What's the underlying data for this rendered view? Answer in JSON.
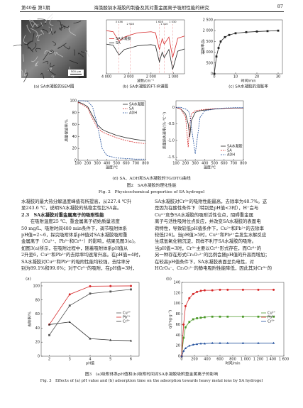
{
  "header": {
    "volume": "第40卷 第1期",
    "title": "海藻酸钠水凝胶的制备及其对重金属离子吸附性能的研究",
    "page": "87"
  },
  "figure2": {
    "panels": [
      {
        "caption": "(a) SA水凝胶的SEM图",
        "scale_bar": "500 μm"
      },
      {
        "caption": "(b) SA水凝胶的FT-IR谱图",
        "chart": {
          "type": "line",
          "xlabel": "波数/cm⁻¹",
          "legend": "left",
          "x": [
            4000,
            3700,
            3436,
            3200,
            2928,
            2600,
            2000,
            1800,
            1626,
            1500,
            1410,
            1200,
            1030,
            800,
            500
          ],
          "xlim": [
            4000,
            500
          ],
          "xticks": [
            {
              "value": 4000,
              "label": "4 000"
            },
            {
              "value": 3000,
              "label": "3 000"
            },
            {
              "value": 2000,
              "label": "2 000"
            },
            {
              "value": 1000,
              "label": "1 000"
            }
          ],
          "ylim": [
            0,
            100
          ],
          "yticks": [],
          "annotations": [
            {
              "text": "3 436",
              "x": 3436
            },
            {
              "text": "2 928",
              "x": 2928
            },
            {
              "text": "1 626",
              "x": 1626
            },
            {
              "text": "1 410",
              "x": 1410
            },
            {
              "text": "1 030",
              "x": 1030
            }
          ],
          "series": [
            {
              "name": "SA水凝胶",
              "color": "#d62728",
              "values": [
                80,
                78,
                60,
                68,
                72,
                76,
                78,
                76,
                45,
                65,
                55,
                68,
                30,
                66,
                70
              ]
            },
            {
              "name": "SA",
              "color": "#222222",
              "values": [
                55,
                53,
                35,
                45,
                48,
                52,
                54,
                52,
                22,
                40,
                30,
                45,
                8,
                42,
                46
              ]
            }
          ]
        }
      },
      {
        "caption": "(c) SA水凝胶的溶胀率",
        "chart": {
          "type": "line",
          "xlabel": "时间/min",
          "ylabel": "溶胀率/%",
          "x": [
            0,
            1,
            2,
            3,
            5,
            7,
            10,
            15,
            20,
            25,
            30
          ],
          "xlim": [
            0,
            32
          ],
          "xticks": [
            0,
            10,
            20,
            30
          ],
          "ylim": [
            0,
            2500
          ],
          "yticks": [
            0,
            500,
            {
              "value": 1000,
              "label": "1 000"
            },
            {
              "value": 1500,
              "label": "1 500"
            },
            {
              "value": 2000,
              "label": "2 000"
            },
            {
              "value": 2500,
              "label": "2 500"
            }
          ],
          "series": [
            {
              "color": "#222222",
              "marker": "square",
              "values": [
                0,
                800,
                1200,
                1500,
                1700,
                1800,
                1880,
                1930,
                1960,
                1980,
                2000
              ]
            }
          ]
        }
      },
      {
        "chart": {
          "type": "line",
          "xlabel": "温度/℃",
          "ylabel": "质量保留率/%",
          "legend": "upper-right",
          "x": [
            100,
            150,
            200,
            250,
            300,
            350,
            400,
            500,
            600,
            700,
            800
          ],
          "xlim": [
            100,
            800
          ],
          "xticks": [
            100,
            200,
            300,
            400,
            500,
            600,
            700,
            800
          ],
          "ylim": [
            0,
            100
          ],
          "yticks": [
            0,
            20,
            40,
            60,
            80,
            100
          ],
          "series": [
            {
              "name": "SA水凝胶",
              "color": "#222222",
              "values": [
                98,
                95,
                90,
                75,
                60,
                52,
                48,
                42,
                38,
                35,
                33
              ]
            },
            {
              "name": "SA",
              "color": "#d62728",
              "dash": true,
              "values": [
                97,
                93,
                88,
                70,
                55,
                48,
                44,
                38,
                33,
                30,
                28
              ]
            },
            {
              "name": "ADH",
              "color": "#1f4e9c",
              "dash": true,
              "values": [
                100,
                100,
                99,
                90,
                60,
                20,
                8,
                4,
                3,
                2,
                2
              ]
            }
          ]
        }
      },
      {
        "chart": {
          "type": "line",
          "xlabel": "温度/℃",
          "ylabel": "质量损失速率/(%·℃⁻¹)",
          "legend": "lower-right",
          "x": [
            100,
            150,
            200,
            227,
            243,
            260,
            300,
            350,
            400,
            500,
            600,
            700,
            800
          ],
          "xlim": [
            100,
            800
          ],
          "xticks": [
            100,
            200,
            300,
            400,
            500,
            600,
            700,
            800
          ],
          "ylim": [
            -1.6,
            0.2
          ],
          "yticks": [
            {
              "value": -1.5,
              "label": "-1.5"
            },
            {
              "value": -1.0,
              "label": "-1.0"
            },
            {
              "value": -0.5,
              "label": "-0.5"
            },
            0
          ],
          "series": [
            {
              "name": "SA水凝胶",
              "color": "#222222",
              "values": [
                0,
                -0.05,
                -0.2,
                -0.5,
                -0.9,
                -0.4,
                -0.15,
                -0.1,
                -0.08,
                -0.05,
                -0.03,
                -0.02,
                -0.02
              ]
            },
            {
              "name": "SA",
              "color": "#d62728",
              "dash": true,
              "values": [
                0,
                -0.05,
                -0.3,
                -1.2,
                -0.5,
                -0.2,
                -0.1,
                -0.08,
                -0.06,
                -0.04,
                -0.03,
                -0.02,
                -0.02
              ]
            },
            {
              "name": "ADH",
              "color": "#1f4e9c",
              "dash": true,
              "values": [
                0,
                0,
                -0.05,
                -0.1,
                -0.2,
                -0.6,
                -1.4,
                -0.3,
                -0.1,
                -0.05,
                -0.02,
                -0.01,
                -0.01
              ]
            }
          ]
        }
      }
    ],
    "row2_caption": "(d) SA、ADH和SA水凝胶的TG/DTG曲线",
    "caption_cn": "图2　SA水凝胶的理化性能",
    "caption_en": "Fig. 2　Physicochemical properties of SA hydrogel"
  },
  "body": {
    "left": [
      "水凝胶的最大热分解温度峰值有所提高，从227.4 ℃升",
      "至243.6 ℃，说明SA水凝胶的热稳定性比SA高。",
      "2.3　SA水凝胶对重金属离子的吸附性能",
      "　　在吸附温度25 ℃、重金属离子初始质量浓度",
      "50 mg/L、吸附时间480 min条件下，调节吸附体系",
      "pH值=2~6，探究吸附体系pH值对SA水凝胶吸附重",
      "金属离子（Cu²⁺、Pb²⁺和Cr³⁺）的影响，结果见图3(a)。",
      "如图3(a)所示，在吸附过程中，随着吸附体系pH值从",
      "2升至6，Cu²⁺和Pb²⁺的去除率均逐渐升高。在pH值=4时，",
      "SA水凝胶对Cu²⁺和Pb²⁺的吸附性能均较强，去除率分",
      "别为89.1%和99.6%；对于Cr³⁺的吸附，在pH值=3时，"
    ],
    "right": [
      "SA水凝胶对Cr³⁺的吸附性能最高，去除率为48.7%。这",
      "是因为在酸性条件下（特别是pH值<3时），H⁺会与",
      "Cu²⁺竞争SA水凝胶的吸附活性位点，阻碍重金属",
      "离子与活性吸附位点反应，并改变SA水凝胶的表面电",
      "荷特性，导致较低pH值条件下，Cu²⁺和Pb²⁺的去除率",
      "较低[26]。当pH值>5时，Cu²⁺和Pb²⁺会发生水解反应",
      "生成氢氧化物沉淀，同样不利于SA水凝胶的吸附。",
      "当pH值=3时，Cr³⁺主要以Cr³⁺形式存在，而Cr³⁺的",
      "另一种存在形式Cr₂O₇²⁻的比例会随pH值的升高而增加；",
      "在较高pH值条件下，SA水凝胶表面呈负电性，对",
      "HCrO₄⁻、Cr₂O₇²⁻的静电吸附性能降低，因此其对Cr³⁺的"
    ]
  },
  "figure3": {
    "panels": [
      {
        "caption": "(a)",
        "chart": {
          "type": "line",
          "xlabel": "pH值",
          "ylabel": "去除率/%",
          "legend": "right",
          "x": [
            2,
            3,
            4,
            5,
            6
          ],
          "xlim": [
            1.6,
            6.4
          ],
          "xticks": [
            2,
            3,
            4,
            5,
            6
          ],
          "ylim": [
            0,
            105
          ],
          "yticks": [
            0,
            20,
            40,
            60,
            80,
            100
          ],
          "series": [
            {
              "name": "Cu²⁺",
              "color": "#555555",
              "marker": "square",
              "values": [
                30,
                72,
                89.1,
                92,
                95
              ]
            },
            {
              "name": "Pb²⁺",
              "color": "#d62728",
              "marker": "circle",
              "values": [
                45,
                88,
                99.6,
                99.8,
                100
              ]
            },
            {
              "name": "Cr³⁺",
              "color": "#333333",
              "marker": "triangle",
              "values": [
                45,
                48.7,
                25,
                23,
                22
              ]
            }
          ]
        }
      },
      {
        "caption": "(b)",
        "chart": {
          "type": "line",
          "xlabel": "时间/min",
          "ylabel": "q/(mg·g⁻¹)",
          "legend": "right",
          "x": [
            0,
            30,
            60,
            120,
            180,
            240,
            300,
            360,
            480,
            600,
            720,
            960,
            1200,
            1440
          ],
          "xlim": [
            0,
            1600
          ],
          "xticks": [
            0,
            200,
            400,
            600,
            800,
            {
              "value": 1000,
              "label": "1 000"
            },
            {
              "value": 1200,
              "label": "1 200"
            },
            {
              "value": 1400,
              "label": "1 400"
            },
            {
              "value": 1600,
              "label": "1 600"
            }
          ],
          "ylim": [
            0,
            140
          ],
          "yticks": [
            0,
            20,
            40,
            60,
            80,
            100,
            120,
            140
          ],
          "series": [
            {
              "name": "Cu²⁺",
              "color": "#4d9a2a",
              "marker": "square",
              "values": [
                0,
                35,
                55,
                65,
                70,
                72,
                73,
                74,
                75,
                75,
                75,
                75,
                75,
                75
              ]
            },
            {
              "name": "Pb²⁺",
              "color": "#d62728",
              "marker": "circle",
              "values": [
                0,
                60,
                95,
                110,
                118,
                122,
                124,
                125,
                125,
                126,
                126,
                126,
                126,
                126
              ]
            },
            {
              "name": "Cr³⁺",
              "color": "#1f4e9c",
              "marker": "triangle",
              "values": [
                0,
                10,
                15,
                20,
                22,
                23,
                24,
                24,
                25,
                25,
                25,
                25,
                25,
                25
              ]
            }
          ]
        }
      }
    ],
    "caption_cn": "图3　(a)吸附体系pH值和(b)吸附时间对SA水凝胶吸附重金属离子的影响",
    "caption_en": "Fig. 3　Effects of (a) pH value and (b) adsorption time on the adsorption towards heavy metal ions by SA hydrogel"
  }
}
